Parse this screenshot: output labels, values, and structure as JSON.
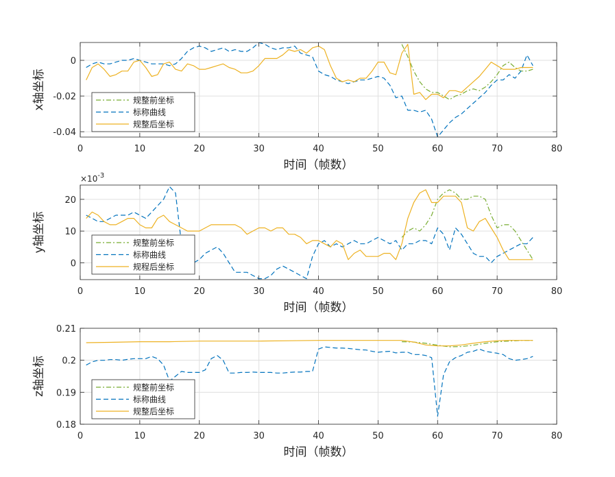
{
  "figure": {
    "background": "#ffffff"
  },
  "colors": {
    "before": "#77ac30",
    "nominal": "#0072bd",
    "after": "#edb120",
    "grid": "#dfdfdf",
    "axis": "#262626"
  },
  "chart_data": [
    {
      "type": "line",
      "title": "",
      "xlabel": "时间（帧数）",
      "ylabel": "x轴坐标",
      "xlim": [
        0,
        80
      ],
      "ylim": [
        -0.043,
        0.01
      ],
      "xticks": [
        0,
        10,
        20,
        30,
        40,
        50,
        60,
        70,
        80
      ],
      "yticks": [
        -0.04,
        -0.02,
        0
      ],
      "ytick_labels": [
        "-0.04",
        "-0.02",
        "0"
      ],
      "exponent_label": "",
      "grid": true,
      "legend_position": "bottom-left",
      "series": [
        {
          "name": "规整前坐标",
          "style": "dashdot",
          "color": "#77ac30",
          "x": [
            54,
            55,
            56,
            57,
            58,
            59,
            60,
            61,
            62,
            63,
            64,
            65,
            66,
            67,
            68,
            69,
            70,
            71,
            72,
            73,
            74,
            75,
            76
          ],
          "y": [
            0.009,
            0.002,
            -0.006,
            -0.012,
            -0.016,
            -0.018,
            -0.018,
            -0.02,
            -0.022,
            -0.02,
            -0.019,
            -0.017,
            -0.016,
            -0.017,
            -0.015,
            -0.012,
            -0.008,
            -0.003,
            -0.001,
            -0.004,
            -0.006,
            -0.006,
            -0.005
          ]
        },
        {
          "name": "标称曲线",
          "style": "dashed",
          "color": "#0072bd",
          "x": [
            1,
            2,
            3,
            4,
            5,
            6,
            7,
            8,
            9,
            10,
            11,
            12,
            13,
            14,
            15,
            16,
            17,
            18,
            19,
            20,
            21,
            22,
            23,
            24,
            25,
            26,
            27,
            28,
            29,
            30,
            31,
            32,
            33,
            34,
            35,
            36,
            37,
            38,
            39,
            40,
            41,
            42,
            43,
            44,
            45,
            46,
            47,
            48,
            49,
            50,
            51,
            52,
            53,
            54,
            55,
            56,
            57,
            58,
            59,
            60,
            61,
            62,
            63,
            64,
            65,
            66,
            67,
            68,
            69,
            70,
            71,
            72,
            73,
            74,
            75,
            76
          ],
          "y": [
            -0.004,
            -0.002,
            -0.001,
            -0.002,
            -0.002,
            -0.001,
            0,
            0,
            0.001,
            0,
            -0.001,
            -0.002,
            -0.002,
            -0.002,
            -0.003,
            -0.002,
            0.001,
            0.005,
            0.007,
            0.008,
            0.007,
            0.005,
            0.006,
            0.007,
            0.005,
            0.006,
            0.005,
            0.005,
            0.007,
            0.01,
            0.009,
            0.007,
            0.006,
            0.007,
            0.007,
            0.008,
            0.004,
            0.003,
            0.002,
            -0.006,
            -0.008,
            -0.009,
            -0.011,
            -0.012,
            -0.013,
            -0.012,
            -0.011,
            -0.011,
            -0.01,
            -0.009,
            -0.01,
            -0.014,
            -0.021,
            -0.02,
            -0.028,
            -0.028,
            -0.029,
            -0.028,
            -0.033,
            -0.043,
            -0.039,
            -0.035,
            -0.032,
            -0.03,
            -0.027,
            -0.024,
            -0.021,
            -0.018,
            -0.014,
            -0.011,
            -0.011,
            -0.008,
            -0.01,
            -0.006,
            0.003,
            -0.003
          ]
        },
        {
          "name": "规整后坐标",
          "style": "solid",
          "color": "#edb120",
          "x": [
            1,
            2,
            3,
            4,
            5,
            6,
            7,
            8,
            9,
            10,
            11,
            12,
            13,
            14,
            15,
            16,
            17,
            18,
            19,
            20,
            21,
            22,
            23,
            24,
            25,
            26,
            27,
            28,
            29,
            30,
            31,
            32,
            33,
            34,
            35,
            36,
            37,
            38,
            39,
            40,
            41,
            42,
            43,
            44,
            45,
            46,
            47,
            48,
            49,
            50,
            51,
            52,
            53,
            54,
            55,
            56,
            57,
            58,
            59,
            60,
            61,
            62,
            63,
            64,
            65,
            66,
            67,
            68,
            69,
            70,
            71,
            72,
            73,
            74,
            75,
            76
          ],
          "y": [
            -0.011,
            -0.004,
            -0.002,
            -0.005,
            -0.009,
            -0.008,
            -0.006,
            -0.006,
            -0.001,
            0,
            -0.004,
            -0.009,
            -0.008,
            -0.002,
            -0.001,
            -0.005,
            -0.006,
            -0.002,
            -0.003,
            -0.005,
            -0.005,
            -0.004,
            -0.003,
            -0.002,
            -0.004,
            -0.005,
            -0.007,
            -0.007,
            -0.006,
            -0.003,
            0.001,
            0.001,
            0.001,
            0.003,
            0.006,
            0.005,
            0.006,
            0.004,
            0.007,
            0.008,
            0.006,
            -0.003,
            -0.01,
            -0.012,
            -0.011,
            -0.012,
            -0.01,
            -0.01,
            -0.006,
            -0.001,
            -0.001,
            -0.007,
            -0.008,
            0.004,
            0.009,
            -0.019,
            -0.018,
            -0.022,
            -0.019,
            -0.019,
            -0.021,
            -0.017,
            -0.017,
            -0.018,
            -0.015,
            -0.012,
            -0.009,
            -0.005,
            -0.001,
            -0.003,
            -0.005,
            -0.005,
            -0.005,
            -0.004,
            -0.004,
            -0.004
          ]
        }
      ]
    },
    {
      "type": "line",
      "title": "",
      "xlabel": "时间（帧数）",
      "ylabel": "y轴坐标",
      "xlim": [
        0,
        80
      ],
      "ylim": [
        -5.3,
        24.5
      ],
      "xticks": [
        0,
        10,
        20,
        30,
        40,
        50,
        60,
        70,
        80
      ],
      "yticks": [
        0,
        10,
        20
      ],
      "ytick_labels": [
        "0",
        "10",
        "20"
      ],
      "exponent_label": "×10",
      "exponent_power": "-3",
      "grid": true,
      "legend_position": "bottom-left",
      "series": [
        {
          "name": "规整前坐标",
          "style": "dashdot",
          "color": "#77ac30",
          "x": [
            54,
            55,
            56,
            57,
            58,
            59,
            60,
            61,
            62,
            63,
            64,
            65,
            66,
            67,
            68,
            69,
            70,
            71,
            72,
            73,
            74,
            75,
            76
          ],
          "y": [
            8,
            10,
            11,
            10,
            12,
            15,
            20,
            22,
            23,
            22,
            20,
            20,
            21,
            21,
            20,
            15,
            11,
            12,
            12,
            10,
            7,
            4,
            1
          ]
        },
        {
          "name": "标称曲线",
          "style": "dashed",
          "color": "#0072bd",
          "x": [
            1,
            2,
            3,
            4,
            5,
            6,
            7,
            8,
            9,
            10,
            11,
            12,
            13,
            14,
            15,
            16,
            17,
            18,
            19,
            20,
            21,
            22,
            23,
            24,
            25,
            26,
            27,
            28,
            29,
            30,
            31,
            32,
            33,
            34,
            35,
            36,
            37,
            38,
            39,
            40,
            41,
            42,
            43,
            44,
            45,
            46,
            47,
            48,
            49,
            50,
            51,
            52,
            53,
            54,
            55,
            56,
            57,
            58,
            59,
            60,
            61,
            62,
            63,
            64,
            65,
            66,
            67,
            68,
            69,
            70,
            71,
            72,
            73,
            74,
            75,
            76
          ],
          "y": [
            15,
            14,
            13,
            13,
            14,
            15,
            15,
            15,
            16,
            15,
            14,
            16,
            18,
            20,
            24,
            22,
            6,
            2,
            0,
            1,
            3,
            4,
            5,
            3,
            0,
            -3,
            -3,
            -3,
            -4,
            -5,
            -5,
            -4,
            -2,
            -1,
            -2,
            -3,
            -4,
            -5,
            2,
            6,
            7,
            5,
            6,
            5,
            6,
            7,
            6,
            6,
            7,
            8,
            7,
            6,
            7,
            4,
            6,
            6,
            7,
            7,
            6,
            11,
            9,
            4,
            11,
            9,
            6,
            3,
            2,
            2,
            0,
            2,
            3,
            4,
            5,
            6,
            6,
            8
          ]
        },
        {
          "name": "规程后坐标",
          "style": "solid",
          "color": "#edb120",
          "x": [
            1,
            2,
            3,
            4,
            5,
            6,
            7,
            8,
            9,
            10,
            11,
            12,
            13,
            14,
            15,
            16,
            17,
            18,
            19,
            20,
            21,
            22,
            23,
            24,
            25,
            26,
            27,
            28,
            29,
            30,
            31,
            32,
            33,
            34,
            35,
            36,
            37,
            38,
            39,
            40,
            41,
            42,
            43,
            44,
            45,
            46,
            47,
            48,
            49,
            50,
            51,
            52,
            53,
            54,
            55,
            56,
            57,
            58,
            59,
            60,
            61,
            62,
            63,
            64,
            65,
            66,
            67,
            68,
            69,
            70,
            71,
            72,
            73,
            74,
            75,
            76
          ],
          "y": [
            14,
            16,
            15,
            13,
            12,
            12,
            13,
            14,
            14,
            12,
            11,
            11,
            14,
            15,
            13,
            12,
            11,
            10,
            10,
            10,
            11,
            12,
            12,
            12,
            12,
            12,
            11,
            9,
            10,
            11,
            11,
            10,
            11,
            11,
            9,
            9,
            8,
            6,
            7,
            7,
            6,
            5,
            7,
            6,
            1,
            3,
            4,
            2,
            2,
            2,
            3,
            3,
            1,
            6,
            14,
            19,
            22,
            23,
            19,
            19,
            21,
            21,
            21,
            19,
            11,
            10,
            13,
            14,
            11,
            8,
            4,
            1,
            1,
            1,
            1,
            1
          ]
        }
      ]
    },
    {
      "type": "line",
      "title": "",
      "xlabel": "时间（帧数）",
      "ylabel": "z轴坐标",
      "xlim": [
        0,
        80
      ],
      "ylim": [
        0.18,
        0.21
      ],
      "xticks": [
        0,
        10,
        20,
        30,
        40,
        50,
        60,
        70,
        80
      ],
      "yticks": [
        0.18,
        0.19,
        0.2,
        0.21
      ],
      "ytick_labels": [
        "0.18",
        "0.19",
        "0.2",
        "0.21"
      ],
      "exponent_label": "",
      "grid": true,
      "legend_position": "bottom-left",
      "series": [
        {
          "name": "规整前坐标",
          "style": "dashdot",
          "color": "#77ac30",
          "x": [
            54,
            56,
            58,
            60,
            62,
            64,
            66,
            68,
            70,
            72,
            74,
            76
          ],
          "y": [
            0.2058,
            0.2057,
            0.2053,
            0.2047,
            0.2042,
            0.2043,
            0.2047,
            0.2053,
            0.2058,
            0.206,
            0.2062,
            0.2062
          ]
        },
        {
          "name": "标称曲线",
          "style": "dashed",
          "color": "#0072bd",
          "x": [
            1,
            2,
            3,
            4,
            5,
            6,
            7,
            8,
            9,
            10,
            11,
            12,
            13,
            14,
            15,
            16,
            17,
            18,
            19,
            20,
            21,
            22,
            23,
            24,
            25,
            26,
            27,
            28,
            29,
            30,
            31,
            32,
            33,
            34,
            35,
            36,
            37,
            38,
            39,
            40,
            41,
            42,
            43,
            44,
            45,
            46,
            47,
            48,
            49,
            50,
            51,
            52,
            53,
            54,
            55,
            56,
            57,
            58,
            59,
            60,
            61,
            62,
            63,
            64,
            65,
            66,
            67,
            68,
            69,
            70,
            71,
            72,
            73,
            74,
            75,
            76
          ],
          "y": [
            0.1985,
            0.1995,
            0.2,
            0.2,
            0.2002,
            0.2002,
            0.2,
            0.2003,
            0.2005,
            0.2005,
            0.2005,
            0.2012,
            0.2005,
            0.1985,
            0.1935,
            0.195,
            0.1965,
            0.1962,
            0.1962,
            0.1962,
            0.197,
            0.2005,
            0.2015,
            0.2,
            0.196,
            0.196,
            0.1962,
            0.1962,
            0.1963,
            0.1962,
            0.1962,
            0.1962,
            0.196,
            0.196,
            0.1962,
            0.1963,
            0.1963,
            0.1965,
            0.1965,
            0.2035,
            0.2042,
            0.204,
            0.2038,
            0.2038,
            0.2037,
            0.2035,
            0.2033,
            0.2032,
            0.2028,
            0.2025,
            0.2027,
            0.2028,
            0.2023,
            0.2025,
            0.2025,
            0.2018,
            0.2018,
            0.2015,
            0.2008,
            0.1825,
            0.1955,
            0.1995,
            0.2008,
            0.2015,
            0.2025,
            0.2028,
            0.2035,
            0.2028,
            0.2025,
            0.2022,
            0.2018,
            0.2005,
            0.2,
            0.2002,
            0.2005,
            0.2012
          ]
        },
        {
          "name": "规整后坐标",
          "style": "solid",
          "color": "#edb120",
          "x": [
            1,
            5,
            10,
            15,
            20,
            25,
            30,
            35,
            40,
            45,
            50,
            54,
            56,
            58,
            60,
            62,
            64,
            66,
            68,
            70,
            72,
            74,
            76
          ],
          "y": [
            0.2055,
            0.2056,
            0.2058,
            0.2058,
            0.206,
            0.206,
            0.206,
            0.2061,
            0.2062,
            0.2062,
            0.2062,
            0.2062,
            0.2057,
            0.2048,
            0.2045,
            0.2045,
            0.2048,
            0.2053,
            0.2058,
            0.2061,
            0.2062,
            0.2062,
            0.2062
          ]
        }
      ]
    }
  ]
}
